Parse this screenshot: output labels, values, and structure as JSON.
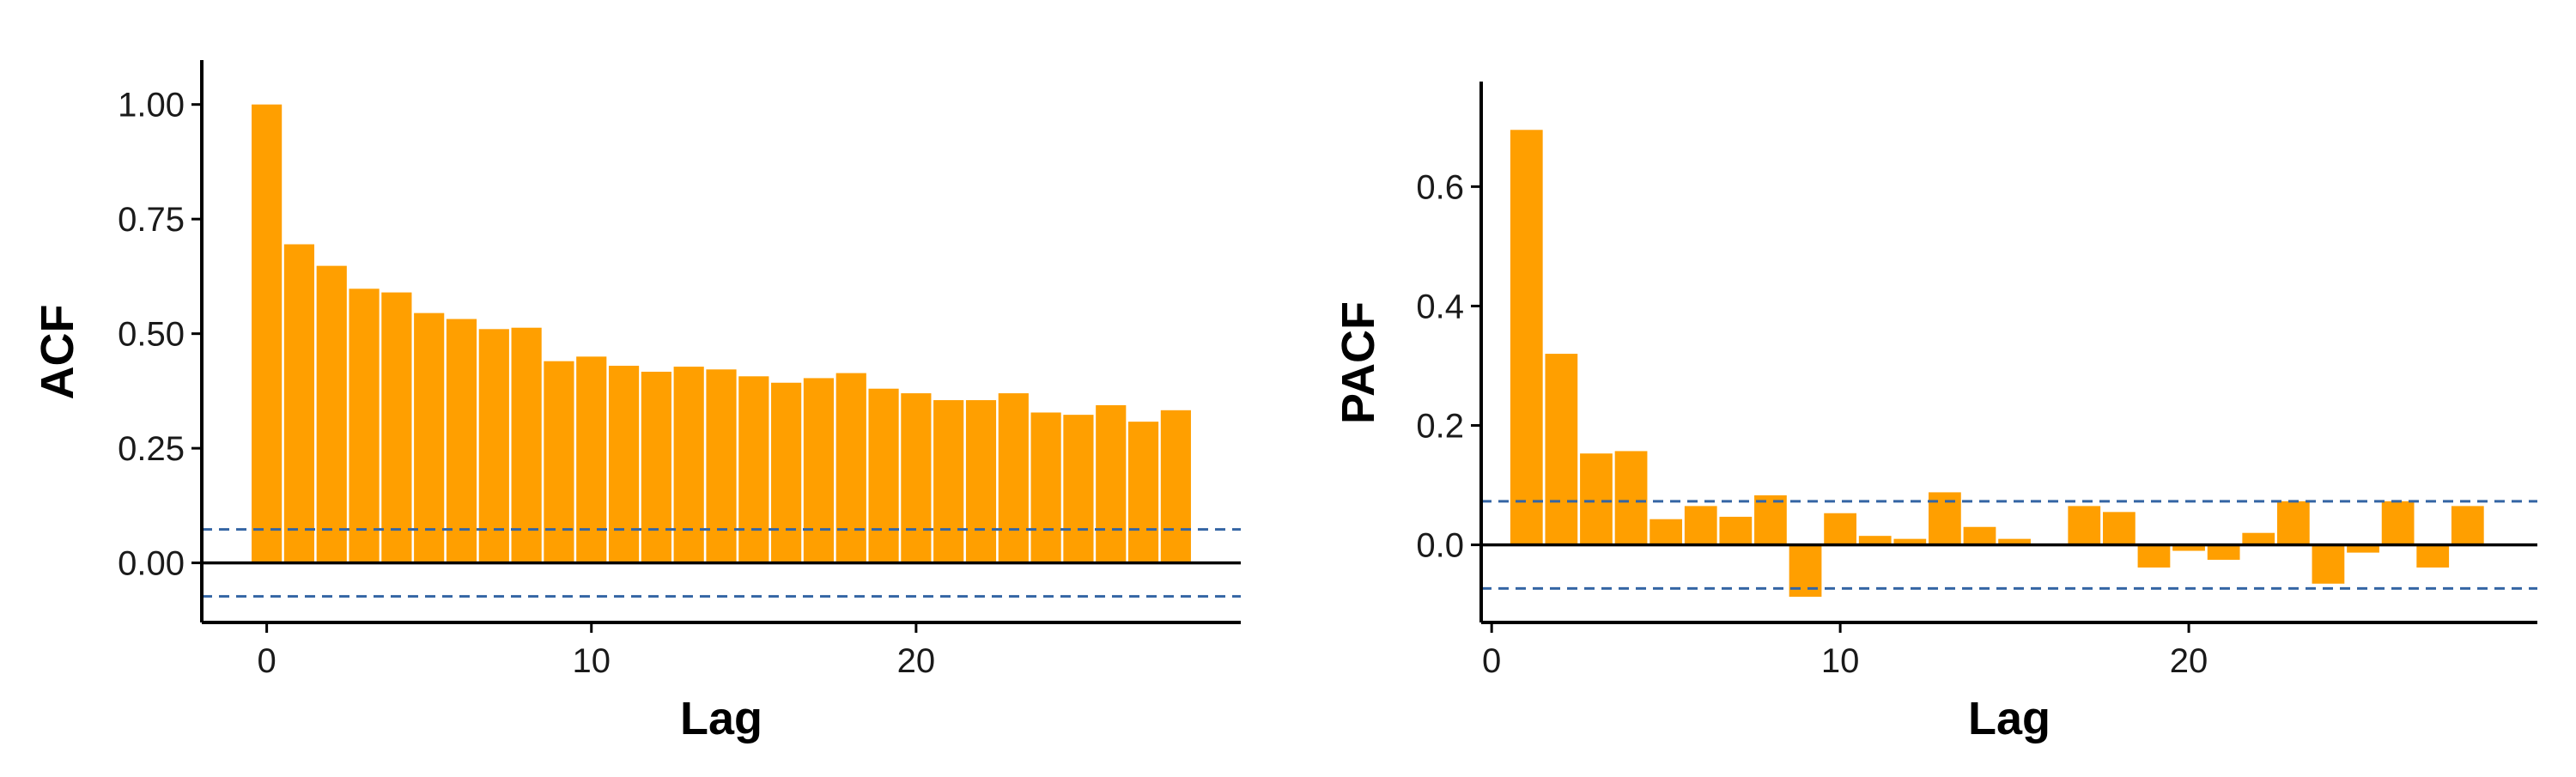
{
  "colors": {
    "bar": "#FF9F00",
    "ci": "#3465A4",
    "axis": "#000000"
  },
  "chart_data": [
    {
      "type": "bar",
      "title": "",
      "xlabel": "Lag",
      "ylabel": "ACF",
      "xlim": [
        -2,
        30
      ],
      "ylim": [
        -0.13,
        1.05
      ],
      "x_ticks": [
        0,
        10,
        20
      ],
      "y_ticks": [
        "0.00",
        "0.25",
        "0.50",
        "0.75",
        "1.00"
      ],
      "ci": 0.073,
      "grid": false,
      "x": [
        0,
        1,
        2,
        3,
        4,
        5,
        6,
        7,
        8,
        9,
        10,
        11,
        12,
        13,
        14,
        15,
        16,
        17,
        18,
        19,
        20,
        21,
        22,
        23,
        24,
        25,
        26,
        27,
        28
      ],
      "values": [
        1.0,
        0.695,
        0.648,
        0.598,
        0.59,
        0.545,
        0.532,
        0.51,
        0.513,
        0.44,
        0.45,
        0.43,
        0.417,
        0.428,
        0.422,
        0.407,
        0.393,
        0.403,
        0.414,
        0.38,
        0.37,
        0.355,
        0.355,
        0.37,
        0.328,
        0.323,
        0.344,
        0.308,
        0.333
      ]
    },
    {
      "type": "bar",
      "title": "",
      "xlabel": "Lag",
      "ylabel": "PACF",
      "xlim": [
        -0.3,
        30
      ],
      "ylim": [
        -0.13,
        0.74
      ],
      "x_ticks": [
        0,
        10,
        20
      ],
      "y_ticks": [
        "0.0",
        "0.2",
        "0.4",
        "0.6"
      ],
      "ci": 0.073,
      "grid": false,
      "x": [
        1,
        2,
        3,
        4,
        5,
        6,
        7,
        8,
        9,
        10,
        11,
        12,
        13,
        14,
        15,
        16,
        17,
        18,
        19,
        20,
        21,
        22,
        23,
        24,
        25,
        26,
        27,
        28
      ],
      "values": [
        0.695,
        0.32,
        0.153,
        0.157,
        0.043,
        0.065,
        0.047,
        0.083,
        -0.087,
        0.053,
        0.015,
        0.01,
        0.088,
        0.03,
        0.01,
        0.0,
        0.065,
        0.055,
        -0.038,
        -0.01,
        -0.025,
        0.02,
        0.073,
        -0.065,
        -0.013,
        0.073,
        -0.038,
        0.065
      ]
    }
  ]
}
